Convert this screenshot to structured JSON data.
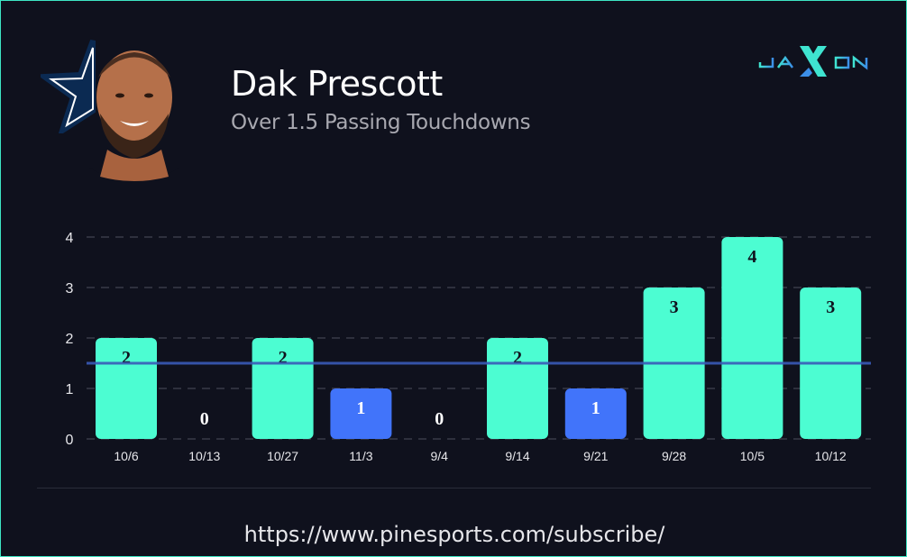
{
  "header": {
    "player_name": "Dak Prescott",
    "prop_label": "Over 1.5 Passing Touchdowns",
    "logo_text": "JAXON",
    "team_icon": "star-icon"
  },
  "footer": {
    "url": "https://www.pinesports.com/subscribe/"
  },
  "colors": {
    "background": "#0f111d",
    "hit": "#4cfdd2",
    "miss": "#4174fa",
    "threshold": "#3a5bb8",
    "border": "#3ee6c4"
  },
  "chart_data": {
    "type": "bar",
    "categories": [
      "10/6",
      "10/13",
      "10/27",
      "11/3",
      "9/4",
      "9/14",
      "9/21",
      "9/28",
      "10/5",
      "10/12"
    ],
    "values": [
      2,
      0,
      2,
      1,
      0,
      2,
      1,
      3,
      4,
      3
    ],
    "threshold": 1.5,
    "ylim": [
      0,
      4
    ],
    "yticks": [
      "0",
      "1",
      "2",
      "3",
      "4"
    ],
    "grid": true,
    "title": "",
    "xlabel": "",
    "ylabel": ""
  }
}
